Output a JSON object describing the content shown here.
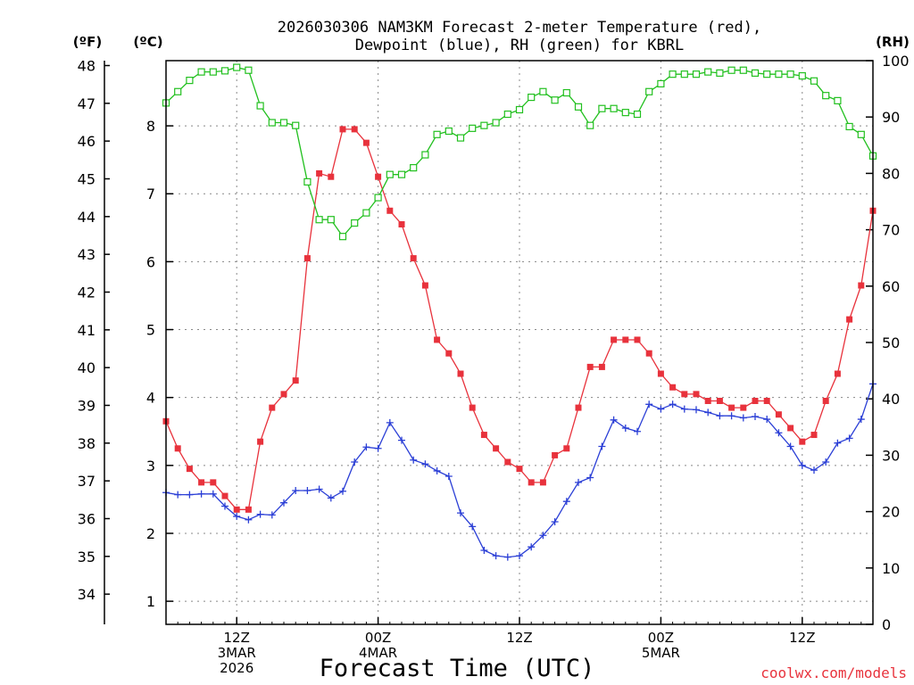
{
  "title_line1": "2026030306 NAM3KM Forecast 2-meter Temperature (red),",
  "title_line2": "Dewpoint (blue), RH (green) for KBRL",
  "xlabel": "Forecast Time (UTC)",
  "credit": "coolwx.com/models",
  "units": {
    "fahrenheit": "(ºF)",
    "celsius": "(ºC)",
    "rh": "(RH)"
  },
  "colors": {
    "temperature": "#e8323c",
    "dewpoint": "#2b3fd6",
    "rh": "#22c01f"
  },
  "chart_data": {
    "type": "line",
    "title": "2026030306 NAM3KM Forecast 2-meter Temperature (red), Dewpoint (blue), RH (green) for KBRL",
    "xlabel": "Forecast Time (UTC)",
    "x_unit": "forecast hour",
    "xlim": [
      0,
      60
    ],
    "x_ticks": [
      {
        "hour": 6,
        "lines": [
          "12Z",
          "3MAR",
          "2026"
        ]
      },
      {
        "hour": 18,
        "lines": [
          "00Z",
          "4MAR"
        ]
      },
      {
        "hour": 30,
        "lines": [
          "12Z"
        ]
      },
      {
        "hour": 42,
        "lines": [
          "00Z",
          "5MAR"
        ]
      },
      {
        "hour": 54,
        "lines": [
          "12Z"
        ]
      }
    ],
    "y_left_celsius": {
      "label": "(ºC)",
      "lim": [
        0.66,
        8.96
      ],
      "ticks": [
        1,
        2,
        3,
        4,
        5,
        6,
        7,
        8
      ]
    },
    "y_left_fahrenheit": {
      "label": "(ºF)",
      "lim": [
        33.2,
        48.13
      ],
      "ticks": [
        34,
        35,
        36,
        37,
        38,
        39,
        40,
        41,
        42,
        43,
        44,
        45,
        46,
        47,
        48
      ]
    },
    "y_right_rh": {
      "label": "(RH)",
      "lim": [
        0,
        100
      ],
      "ticks": [
        0,
        10,
        20,
        30,
        40,
        50,
        60,
        70,
        80,
        90,
        100
      ]
    },
    "series": [
      {
        "name": "Temperature",
        "axis": "celsius",
        "marker": "filled-square",
        "x": [
          0,
          1,
          2,
          3,
          4,
          5,
          6,
          7,
          8,
          9,
          10,
          11,
          12,
          13,
          14,
          15,
          16,
          17,
          18,
          19,
          20,
          21,
          22,
          23,
          24,
          25,
          26,
          27,
          28,
          29,
          30,
          31,
          32,
          33,
          34,
          35,
          36,
          37,
          38,
          39,
          40,
          41,
          42,
          43,
          44,
          45,
          46,
          47,
          48,
          49,
          50,
          51,
          52,
          53,
          54,
          55,
          56,
          57,
          58,
          59,
          60
        ],
        "values": [
          3.65,
          3.25,
          2.95,
          2.75,
          2.75,
          2.55,
          2.35,
          2.35,
          3.35,
          3.85,
          4.05,
          4.25,
          6.05,
          7.3,
          7.25,
          7.95,
          7.95,
          7.75,
          7.25,
          6.75,
          6.55,
          6.05,
          5.65,
          4.85,
          4.65,
          4.35,
          3.85,
          3.45,
          3.25,
          3.05,
          2.95,
          2.75,
          2.75,
          3.15,
          3.25,
          3.85,
          4.45,
          4.45,
          4.85,
          4.85,
          4.85,
          4.65,
          4.35,
          4.15,
          4.05,
          4.05,
          3.95,
          3.95,
          3.85,
          3.85,
          3.95,
          3.95,
          3.75,
          3.55,
          3.35,
          3.45,
          3.95,
          4.35,
          5.15,
          5.65,
          6.75
        ]
      },
      {
        "name": "Dewpoint",
        "axis": "celsius",
        "marker": "plus",
        "x": [
          0,
          1,
          2,
          3,
          4,
          5,
          6,
          7,
          8,
          9,
          10,
          11,
          12,
          13,
          14,
          15,
          16,
          17,
          18,
          19,
          20,
          21,
          22,
          23,
          24,
          25,
          26,
          27,
          28,
          29,
          30,
          31,
          32,
          33,
          34,
          35,
          36,
          37,
          38,
          39,
          40,
          41,
          42,
          43,
          44,
          45,
          46,
          47,
          48,
          49,
          50,
          51,
          52,
          53,
          54,
          55,
          56,
          57,
          58,
          59,
          60
        ],
        "values": [
          2.6,
          2.57,
          2.57,
          2.58,
          2.58,
          2.4,
          2.25,
          2.2,
          2.28,
          2.27,
          2.45,
          2.63,
          2.63,
          2.65,
          2.52,
          2.62,
          3.05,
          3.27,
          3.25,
          3.63,
          3.37,
          3.08,
          3.02,
          2.92,
          2.84,
          2.3,
          2.1,
          1.75,
          1.67,
          1.65,
          1.67,
          1.8,
          1.97,
          2.17,
          2.47,
          2.75,
          2.82,
          3.28,
          3.67,
          3.55,
          3.5,
          3.9,
          3.83,
          3.9,
          3.83,
          3.82,
          3.78,
          3.73,
          3.73,
          3.7,
          3.72,
          3.68,
          3.48,
          3.28,
          3.0,
          2.93,
          3.05,
          3.33,
          3.4,
          3.68,
          4.2
        ]
      },
      {
        "name": "RH",
        "axis": "rh",
        "marker": "open-square",
        "x": [
          0,
          1,
          2,
          3,
          4,
          5,
          6,
          7,
          8,
          9,
          10,
          11,
          12,
          13,
          14,
          15,
          16,
          17,
          18,
          19,
          20,
          21,
          22,
          23,
          24,
          25,
          26,
          27,
          28,
          29,
          30,
          31,
          32,
          33,
          34,
          35,
          36,
          37,
          38,
          39,
          40,
          41,
          42,
          43,
          44,
          45,
          46,
          47,
          48,
          49,
          50,
          51,
          52,
          53,
          54,
          55,
          56,
          57,
          58,
          59,
          60
        ],
        "values": [
          92.5,
          94.5,
          96.5,
          98,
          98,
          98.2,
          98.8,
          98.3,
          92,
          89,
          89,
          88.5,
          78.5,
          71.8,
          71.8,
          68.8,
          71.2,
          73,
          75.7,
          79.8,
          79.8,
          81,
          83.3,
          86.9,
          87.5,
          86.3,
          88,
          88.5,
          89,
          90.5,
          91.3,
          93.5,
          94.5,
          93,
          94.3,
          91.8,
          88.5,
          91.5,
          91.5,
          90.8,
          90.5,
          94.5,
          95.9,
          97.6,
          97.6,
          97.6,
          98,
          97.8,
          98.3,
          98.3,
          97.8,
          97.6,
          97.6,
          97.6,
          97.3,
          96.4,
          93.8,
          92.9,
          88.3,
          86.9,
          83.1
        ]
      }
    ]
  }
}
